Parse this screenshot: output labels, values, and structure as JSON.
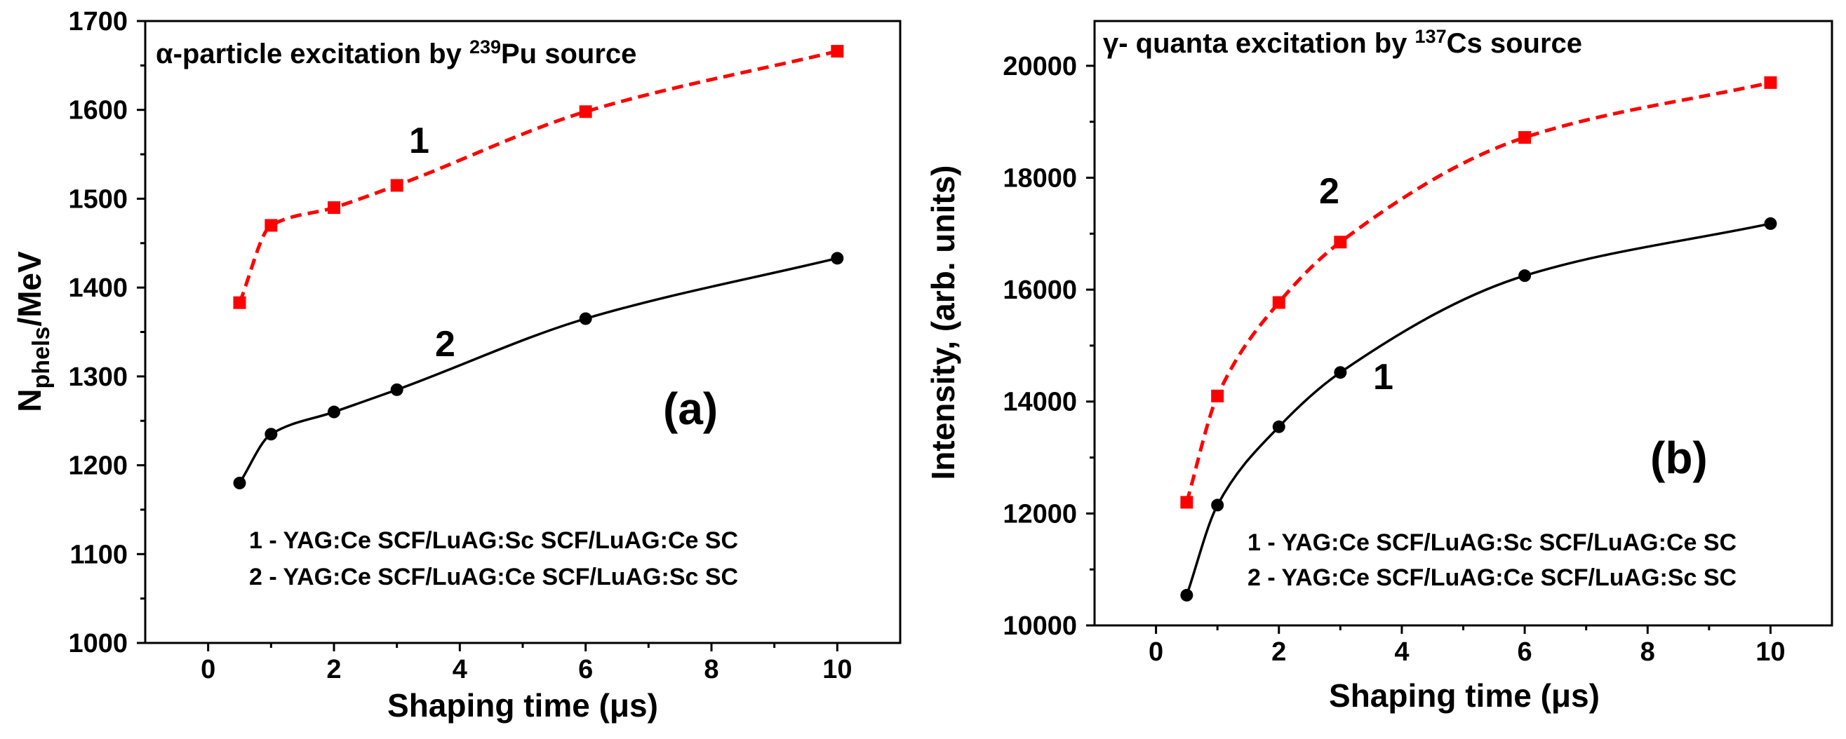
{
  "chart_data": [
    {
      "type": "line",
      "panel_label": "(a)",
      "annotation": {
        "prefix": "α-particle excitation by ",
        "sup": "239",
        "suffix": "Pu source"
      },
      "xlabel": "Shaping time (μs)",
      "ylabel": {
        "main": "N",
        "sub": "phels",
        "rest": "/MeV"
      },
      "xlim": [
        -1,
        11
      ],
      "ylim": [
        1000,
        1700
      ],
      "xticks": [
        0,
        2,
        4,
        6,
        8,
        10
      ],
      "yticks": [
        1000,
        1100,
        1200,
        1300,
        1400,
        1500,
        1600,
        1700
      ],
      "series": [
        {
          "name": "1 - YAG:Ce SCF/LuAG:Sc SCF/LuAG:Ce SC",
          "curve_label": "1",
          "color": "#ff0000",
          "marker": "square",
          "line": "dashed",
          "x": [
            0.5,
            1,
            2,
            3,
            6,
            10
          ],
          "y": [
            1383,
            1470,
            1490,
            1515,
            1598,
            1666
          ]
        },
        {
          "name": "2 - YAG:Ce SCF/LuAG:Ce SCF/LuAG:Sc SC",
          "curve_label": "2",
          "color": "#000000",
          "marker": "circle",
          "line": "solid",
          "x": [
            0.5,
            1,
            2,
            3,
            6,
            10
          ],
          "y": [
            1180,
            1235,
            1260,
            1285,
            1365,
            1433
          ]
        }
      ],
      "legend": [
        "1 - YAG:Ce SCF/LuAG:Sc SCF/LuAG:Ce SC",
        "2 - YAG:Ce SCF/LuAG:Ce SCF/LuAG:Sc SC"
      ]
    },
    {
      "type": "line",
      "panel_label": "(b)",
      "annotation": {
        "prefix": "γ- quanta excitation by ",
        "sup": "137",
        "suffix": "Cs source"
      },
      "xlabel": "Shaping time (μs)",
      "ylabel": {
        "main": "Intensity, (arb. units)",
        "sub": "",
        "rest": ""
      },
      "xlim": [
        -1,
        11
      ],
      "ylim": [
        10000,
        20800
      ],
      "xticks": [
        0,
        2,
        4,
        6,
        8,
        10
      ],
      "yticks": [
        10000,
        12000,
        14000,
        16000,
        18000,
        20000
      ],
      "series": [
        {
          "name": "2 - YAG:Ce SCF/LuAG:Ce SCF/LuAG:Sc SC",
          "curve_label": "2",
          "color": "#ff0000",
          "marker": "square",
          "line": "dashed",
          "x": [
            0.5,
            1,
            2,
            3,
            6,
            10
          ],
          "y": [
            12200,
            14100,
            15770,
            16850,
            18720,
            19700
          ]
        },
        {
          "name": "1 - YAG:Ce SCF/LuAG:Sc SCF/LuAG:Ce SC",
          "curve_label": "1",
          "color": "#000000",
          "marker": "circle",
          "line": "solid",
          "x": [
            0.5,
            1,
            2,
            3,
            6,
            10
          ],
          "y": [
            10540,
            12150,
            13550,
            14520,
            16250,
            17180
          ]
        }
      ],
      "legend": [
        "1 - YAG:Ce SCF/LuAG:Sc SCF/LuAG:Ce SC",
        "2 - YAG:Ce SCF/LuAG:Ce SCF/LuAG:Sc SC"
      ]
    }
  ]
}
